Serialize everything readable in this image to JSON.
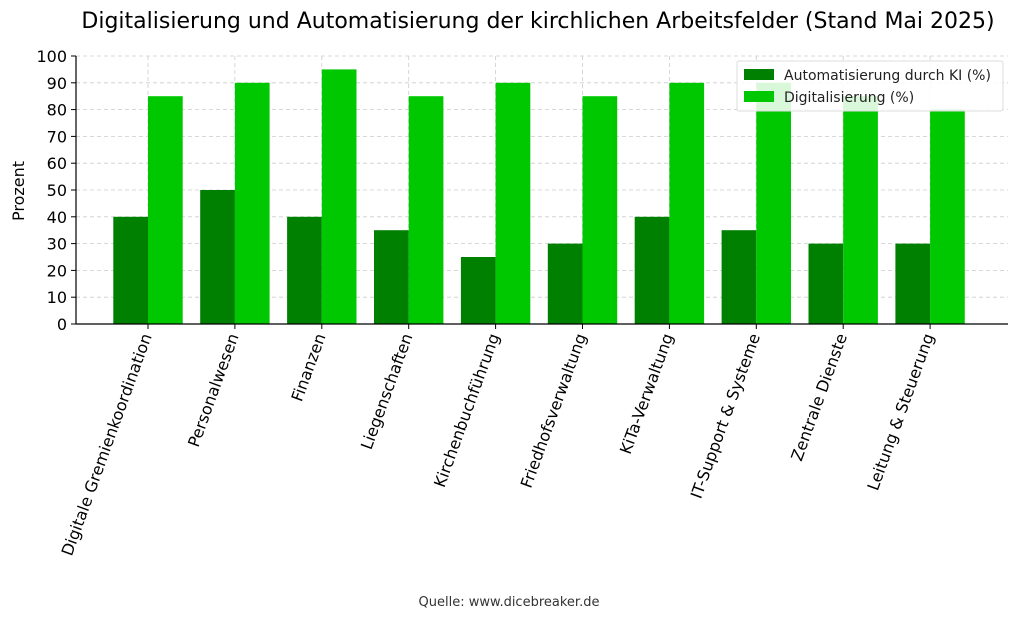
{
  "chart_data": {
    "type": "bar",
    "title": "Digitalisierung und Automatisierung der kirchlichen Arbeitsfelder (Stand Mai 2025)",
    "xlabel": "",
    "ylabel": "Prozent",
    "ylim": [
      0,
      100
    ],
    "yticks": [
      "0",
      "10",
      "20",
      "30",
      "40",
      "50",
      "60",
      "70",
      "80",
      "90",
      "100"
    ],
    "grid": true,
    "legend_position": "top-right",
    "categories": [
      "Digitale Gremienkoordination",
      "Personalwesen",
      "Finanzen",
      "Liegenschaften",
      "Kirchenbuchführung",
      "Friedhofsverwaltung",
      "KiTa-Verwaltung",
      "IT-Support & Systeme",
      "Zentrale Dienste",
      "Leitung & Steuerung"
    ],
    "series": [
      {
        "name": "Automatisierung durch KI (%)",
        "color": "#008000",
        "values": [
          40,
          50,
          40,
          35,
          25,
          30,
          40,
          35,
          30,
          30
        ]
      },
      {
        "name": "Digitalisierung (%)",
        "color": "#00c800",
        "values": [
          85,
          90,
          95,
          85,
          90,
          85,
          90,
          90,
          85,
          80
        ]
      }
    ]
  },
  "source": "Quelle: www.dicebreaker.de"
}
